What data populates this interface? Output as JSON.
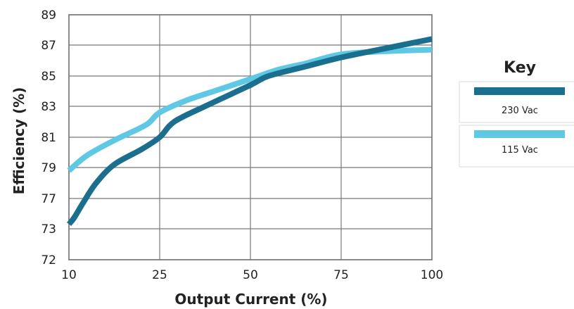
{
  "chart_data": {
    "type": "line",
    "title": "",
    "xlabel": "Output Current (%)",
    "ylabel": "Efficiency (%)",
    "x_ticks": [
      "10",
      "25",
      "50",
      "75",
      "100"
    ],
    "y_ticks": [
      "72",
      "73",
      "77",
      "79",
      "81",
      "83",
      "85",
      "87",
      "89"
    ],
    "grid": true,
    "legend": {
      "title": "Key",
      "position": "right"
    },
    "series": [
      {
        "name": "230 Vac",
        "color": "#1a6e8e",
        "points": [
          {
            "x": "10",
            "y": 73.6
          },
          {
            "x": "10",
            "y": 74.5,
            "xf": 0.06
          },
          {
            "x": "10",
            "y": 76.5,
            "xf": 0.16
          },
          {
            "x": "10",
            "y": 78.0,
            "xf": 0.3
          },
          {
            "x": "10",
            "y": 79.2,
            "xf": 0.5
          },
          {
            "x": "10",
            "y": 80.2,
            "xf": 0.8
          },
          {
            "x": "25",
            "y": 81.0
          },
          {
            "x": "25",
            "y": 82.0,
            "xf": 0.16
          },
          {
            "x": "25",
            "y": 83.0,
            "xf": 0.5
          },
          {
            "x": "50",
            "y": 84.4
          },
          {
            "x": "50",
            "y": 85.0,
            "xf": 0.2
          },
          {
            "x": "50",
            "y": 85.6,
            "xf": 0.6
          },
          {
            "x": "75",
            "y": 86.2
          },
          {
            "x": "75",
            "y": 86.8,
            "xf": 0.5
          },
          {
            "x": "100",
            "y": 87.4
          }
        ]
      },
      {
        "name": "115 Vac",
        "color": "#5ec8e5",
        "points": [
          {
            "x": "10",
            "y": 78.8
          },
          {
            "x": "10",
            "y": 79.8,
            "xf": 0.2
          },
          {
            "x": "10",
            "y": 80.8,
            "xf": 0.5
          },
          {
            "x": "10",
            "y": 81.8,
            "xf": 0.85
          },
          {
            "x": "25",
            "y": 82.6
          },
          {
            "x": "25",
            "y": 83.4,
            "xf": 0.3
          },
          {
            "x": "25",
            "y": 84.0,
            "xf": 0.6
          },
          {
            "x": "50",
            "y": 84.8
          },
          {
            "x": "50",
            "y": 85.4,
            "xf": 0.3
          },
          {
            "x": "50",
            "y": 85.8,
            "xf": 0.6
          },
          {
            "x": "75",
            "y": 86.4
          },
          {
            "x": "75",
            "y": 86.6,
            "xf": 0.5
          },
          {
            "x": "100",
            "y": 86.7
          }
        ]
      }
    ]
  }
}
